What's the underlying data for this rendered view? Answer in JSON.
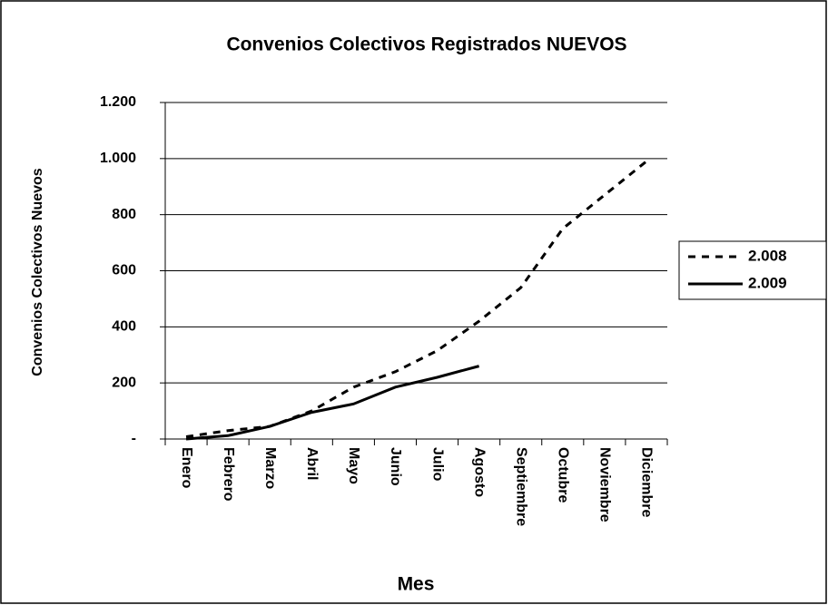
{
  "chart_data": {
    "type": "line",
    "title": "Convenios Colectivos Registrados NUEVOS",
    "x_label": "Mes",
    "y_label": "Convenios Colectivos Nuevos",
    "categories": [
      "Enero",
      "Febrero",
      "Marzo",
      "Abril",
      "Mayo",
      "Junio",
      "Julio",
      "Agosto",
      "Septiembre",
      "Octubre",
      "Noviembre",
      "Diciembre"
    ],
    "series": [
      {
        "name": "2.008",
        "color": "#000000",
        "style": "dashed",
        "values": [
          8,
          30,
          45,
          100,
          185,
          240,
          315,
          420,
          540,
          750,
          870,
          990
        ]
      },
      {
        "name": "2.009",
        "color": "#000000",
        "style": "solid",
        "values": [
          0,
          12,
          45,
          95,
          125,
          185,
          220,
          260,
          null,
          null,
          null,
          null
        ]
      }
    ],
    "ylim": [
      0,
      1200
    ],
    "yticks": [
      {
        "value": 0,
        "label": "-"
      },
      200,
      400,
      600,
      800,
      {
        "value": 1000,
        "label": "1.000"
      },
      {
        "value": 1200,
        "label": "1.200"
      }
    ],
    "grid": true,
    "legend": "right"
  }
}
